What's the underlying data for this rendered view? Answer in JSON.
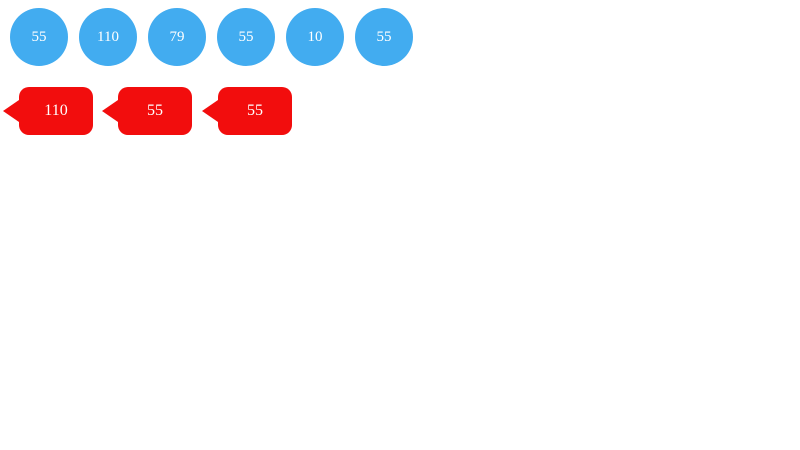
{
  "diagram": {
    "colors": {
      "node_fill": "#42acf0",
      "tag_fill": "#f20d0d",
      "label_text": "#ffffff"
    },
    "circles": [
      {
        "label": "55"
      },
      {
        "label": "110"
      },
      {
        "label": "79"
      },
      {
        "label": "55"
      },
      {
        "label": "10"
      },
      {
        "label": "55"
      }
    ],
    "tags": [
      {
        "label": "110"
      },
      {
        "label": "55"
      },
      {
        "label": "55"
      }
    ]
  }
}
